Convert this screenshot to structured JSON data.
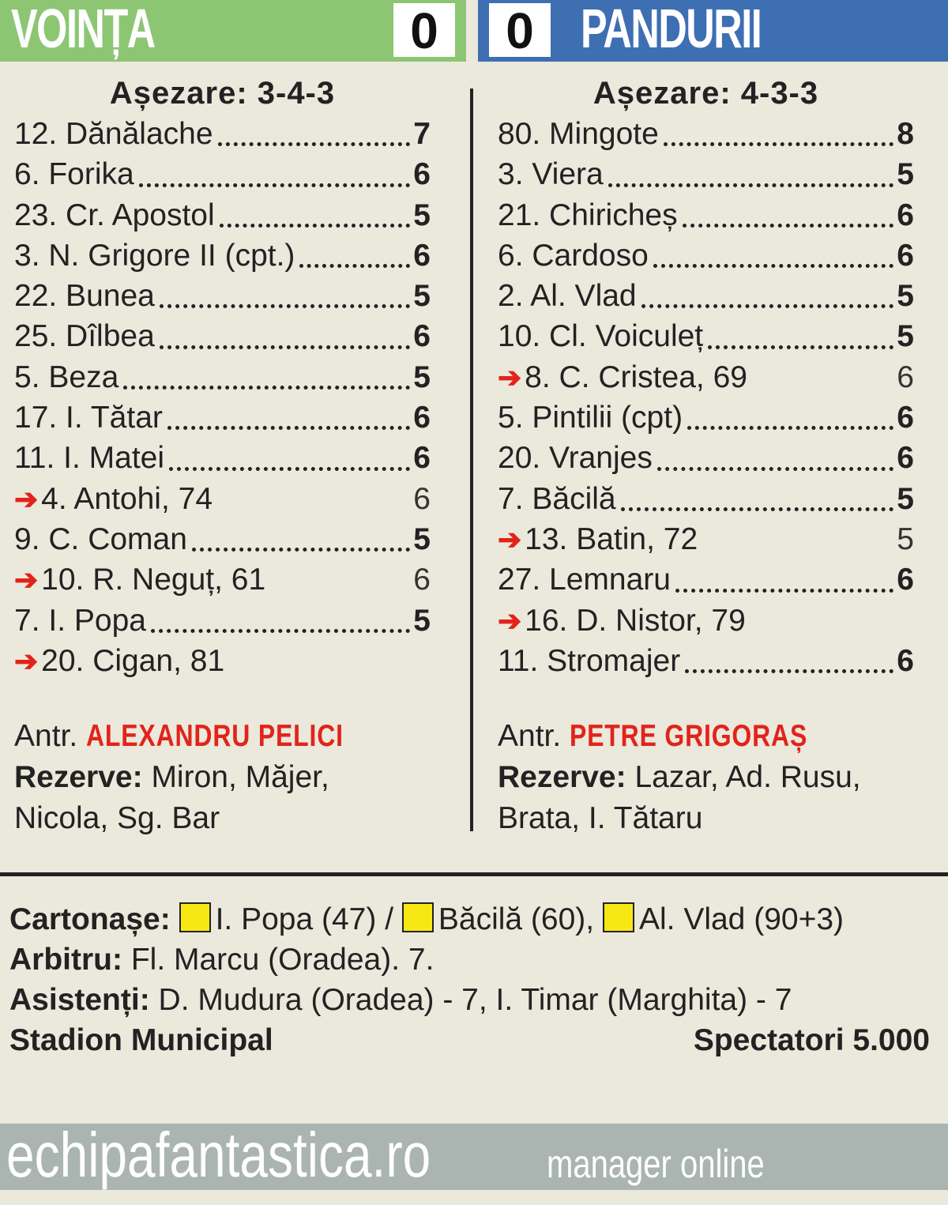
{
  "header": {
    "home_team": "VOINȚA",
    "home_score": "0",
    "away_score": "0",
    "away_team": "PANDURII",
    "home_color": "#8cc673",
    "away_color": "#3f6fb3"
  },
  "home": {
    "formation": "Așezare: 3-4-3",
    "players": [
      {
        "name": "12. Dănălache",
        "rating": "7"
      },
      {
        "name": "6. Forika",
        "rating": "6"
      },
      {
        "name": "23. Cr. Apostol",
        "rating": "5"
      },
      {
        "name": "3. N. Grigore II (cpt.)",
        "rating": "6"
      },
      {
        "name": "22. Bunea",
        "rating": "5"
      },
      {
        "name": "25. Dîlbea",
        "rating": "6"
      },
      {
        "name": "5. Beza",
        "rating": "5"
      },
      {
        "name": "17. I. Tătar",
        "rating": "6"
      },
      {
        "name": "11. I. Matei",
        "rating": "6"
      },
      {
        "name": "4. Antohi, 74",
        "rating": "6",
        "sub": true
      },
      {
        "name": "9. C. Coman",
        "rating": "5"
      },
      {
        "name": "10. R. Neguț, 61",
        "rating": "6",
        "sub": true
      },
      {
        "name": "7. I. Popa",
        "rating": "5"
      },
      {
        "name": "20. Cigan, 81",
        "rating": "",
        "sub": true
      }
    ],
    "coach_label": "Antr.",
    "coach": "ALEXANDRU PELICI",
    "reserves_label": "Rezerve:",
    "reserves": "Miron, Măjer, Nicola, Sg. Bar"
  },
  "away": {
    "formation": "Așezare: 4-3-3",
    "players": [
      {
        "name": "80. Mingote",
        "rating": "8"
      },
      {
        "name": "3. Viera",
        "rating": "5"
      },
      {
        "name": "21. Chiricheș",
        "rating": "6"
      },
      {
        "name": "6. Cardoso",
        "rating": "6"
      },
      {
        "name": "2. Al. Vlad",
        "rating": "5"
      },
      {
        "name": "10. Cl. Voiculeț",
        "rating": "5"
      },
      {
        "name": "8. C. Cristea, 69",
        "rating": "6",
        "sub": true
      },
      {
        "name": "5. Pintilii (cpt)",
        "rating": "6"
      },
      {
        "name": "20. Vranjes",
        "rating": "6"
      },
      {
        "name": "7. Băcilă",
        "rating": "5"
      },
      {
        "name": "13. Batin, 72",
        "rating": "5",
        "sub": true
      },
      {
        "name": "27. Lemnaru",
        "rating": "6"
      },
      {
        "name": "16. D. Nistor, 79",
        "rating": "",
        "sub": true
      },
      {
        "name": "11. Stromajer",
        "rating": "6"
      }
    ],
    "coach_label": "Antr.",
    "coach": "PETRE GRIGORAȘ",
    "reserves_label": "Rezerve:",
    "reserves": "Lazar, Ad. Rusu, Brata, I. Tătaru"
  },
  "info": {
    "cards_label": "Cartonașe:",
    "card1": "I. Popa (47) /",
    "card2": "Băcilă (60),",
    "card3": "Al. Vlad (90+3)",
    "card_color": "#f7e814",
    "referee_label": "Arbitru:",
    "referee": "Fl. Marcu (Oradea). 7.",
    "assistants_label": "Asistenți:",
    "assistants": "D. Mudura (Oradea) - 7, I. Timar (Marghita) - 7",
    "stadium": "Stadion Municipal",
    "spectators": "Spectatori 5.000"
  },
  "footer": {
    "site": "echipafantastica.ro",
    "tagline": "manager online"
  }
}
